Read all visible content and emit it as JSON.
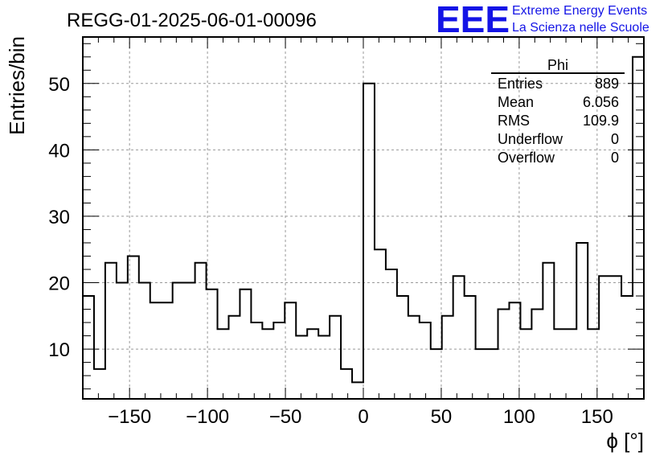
{
  "header": {
    "title": "REGG-01-2025-06-01-00096",
    "logo_text": "EEE",
    "logo_line1": "Extreme Energy Events",
    "logo_line2": "La Scienza nelle Scuole"
  },
  "stats": {
    "name": "Phi",
    "rows": [
      {
        "label": "Entries",
        "value": "889"
      },
      {
        "label": "Mean",
        "value": "6.056"
      },
      {
        "label": "RMS",
        "value": "109.9"
      },
      {
        "label": "Underflow",
        "value": "0"
      },
      {
        "label": "Overflow",
        "value": "0"
      }
    ]
  },
  "colors": {
    "logo": "#1414e6",
    "line": "#000000",
    "grid": "#999999"
  },
  "chart_data": {
    "type": "histogram",
    "xlabel": "ϕ [°]",
    "ylabel": "Entries/bin",
    "xlim": [
      -180,
      180
    ],
    "ylim": [
      2.5,
      57
    ],
    "grid": true,
    "x_ticks": [
      -150,
      -100,
      -50,
      0,
      50,
      100,
      150
    ],
    "y_ticks": [
      10,
      20,
      30,
      40,
      50
    ],
    "bin_width": 7.2,
    "bin_edges_start": -180,
    "values": [
      18,
      7,
      23,
      20,
      24,
      20,
      17,
      17,
      20,
      20,
      23,
      19,
      13,
      15,
      19,
      14,
      13,
      14,
      17,
      12,
      13,
      12,
      15,
      7,
      5,
      50,
      25,
      22,
      18,
      15,
      14,
      10,
      15,
      21,
      18,
      10,
      10,
      16,
      17,
      13,
      16,
      23,
      13,
      13,
      26,
      13,
      21,
      21,
      18,
      54
    ]
  }
}
